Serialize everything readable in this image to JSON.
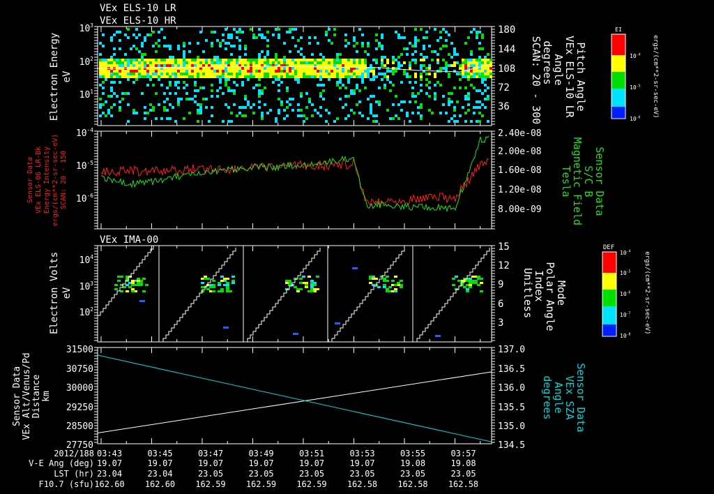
{
  "chart_data": [
    {
      "type": "heatmap",
      "titles": [
        "VEx ELS-10 LR",
        "VEx ELS-10 HR"
      ],
      "ylabel": [
        "Electron Energy",
        "eV"
      ],
      "yticks": [
        "10^3",
        "10^2",
        "10^1"
      ],
      "y2label": [
        "Pitch Angle",
        "VEx ELS-10 LR",
        "Angle",
        "degrees",
        "SCAN: 20 - 300"
      ],
      "y2ticks": [
        "180",
        "144",
        "108",
        "72",
        "36"
      ],
      "colorbar": {
        "title": "EI",
        "ticks": [
          "10^-4",
          "10^-5",
          "10^-6"
        ],
        "unit": "ergs/(cm**2-sr-sec-eV)"
      }
    },
    {
      "type": "line",
      "ylabel": [
        "Sensor Data",
        "VEx ELS-06 LR-Bk",
        "Energy Intensity",
        "ergs/(cm**2-sr-sec-eV)",
        "SCAN: 20 - 150"
      ],
      "yticks": [
        "10^-4",
        "10^-5",
        "10^-6"
      ],
      "y2label": [
        "Sensor Data",
        "S/C B",
        "Magnetic Field",
        "Tesla"
      ],
      "y2ticks": [
        "2.40e-08",
        "2.00e-08",
        "1.60e-08",
        "1.20e-08",
        "8.00e-09"
      ],
      "series": [
        {
          "name": "Energy Intensity",
          "color": "#ff2020",
          "x_min": [
            0,
            1,
            2,
            3,
            4,
            5,
            6,
            7,
            8,
            9,
            10,
            10.5,
            11,
            12,
            13,
            14,
            15,
            15.5
          ],
          "log10_values": [
            -5.2,
            -5.15,
            -5.2,
            -5.15,
            -5.1,
            -5.1,
            -5.1,
            -5.05,
            -5.0,
            -5.0,
            -4.95,
            -6.1,
            -6.1,
            -6.05,
            -5.95,
            -6.0,
            -5.0,
            -4.8
          ]
        },
        {
          "name": "S/C B",
          "color": "#20e020",
          "x_min": [
            0,
            1,
            2,
            3,
            4,
            5,
            6,
            7,
            8,
            9,
            10,
            10.5,
            11,
            12,
            13,
            14,
            15,
            15.5
          ],
          "tesla": [
            1.45e-08,
            1.3e-08,
            1.35e-08,
            1.45e-08,
            1.5e-08,
            1.6e-08,
            1.65e-08,
            1.65e-08,
            1.7e-08,
            1.75e-08,
            1.85e-08,
            8.5e-09,
            8.8e-09,
            8.5e-09,
            8.2e-09,
            8e-09,
            2.2e-08,
            2.25e-08
          ]
        }
      ]
    },
    {
      "type": "heatmap",
      "title": "VEx IMA-00",
      "ylabel": [
        "Electron Volts",
        "eV"
      ],
      "yticks": [
        "10^4",
        "10^3",
        "10^2"
      ],
      "y2label": [
        "Mode",
        "Polar Angle",
        "Index",
        "Unitless"
      ],
      "y2ticks": [
        "15",
        "12",
        "9",
        "6",
        "3"
      ],
      "colorbar": {
        "title": "DEF",
        "ticks": [
          "10^-4",
          "10^-5",
          "10^-6",
          "10^-7",
          "10^-8"
        ],
        "unit": "ergs/(cm**2-sr-sec-eV)"
      }
    },
    {
      "type": "line",
      "ylabel": [
        "Sensor Data",
        "VEx Alt/Venus/Pd",
        "Distance",
        "km"
      ],
      "yticks": [
        "31500",
        "30750",
        "30000",
        "29250",
        "28500",
        "27750"
      ],
      "ylim": [
        27750,
        31500
      ],
      "y2label": [
        "Sensor Data",
        "VEx SZA",
        "Angle",
        "degrees"
      ],
      "y2ticks": [
        "137.0",
        "136.5",
        "136.0",
        "135.5",
        "135.0",
        "134.5"
      ],
      "y2lim": [
        134.5,
        137.0
      ],
      "series": [
        {
          "name": "Distance",
          "color": "#ffffff",
          "x_min": [
            0,
            15.6
          ],
          "values": [
            28170,
            30550
          ]
        },
        {
          "name": "SZA",
          "color": "#00d8d8",
          "x_min": [
            0,
            15.6
          ],
          "values": [
            136.8,
            134.55
          ]
        }
      ]
    }
  ],
  "time_axis": {
    "row_labels": [
      "2012/188",
      "V-E Ang (deg)",
      "LST (hr)",
      "F10.7 (sfu)"
    ],
    "columns": [
      {
        "time": "03:43",
        "vea": "19.07",
        "lst": "23.04",
        "f107": "162.60"
      },
      {
        "time": "03:45",
        "vea": "19.07",
        "lst": "23.04",
        "f107": "162.60"
      },
      {
        "time": "03:47",
        "vea": "19.07",
        "lst": "23.05",
        "f107": "162.59"
      },
      {
        "time": "03:49",
        "vea": "19.07",
        "lst": "23.05",
        "f107": "162.59"
      },
      {
        "time": "03:51",
        "vea": "19.07",
        "lst": "23.05",
        "f107": "162.59"
      },
      {
        "time": "03:53",
        "vea": "19.07",
        "lst": "23.05",
        "f107": "162.58"
      },
      {
        "time": "03:55",
        "vea": "19.08",
        "lst": "23.05",
        "f107": "162.58"
      },
      {
        "time": "03:57",
        "vea": "19.08",
        "lst": "23.05",
        "f107": "162.58"
      }
    ]
  }
}
